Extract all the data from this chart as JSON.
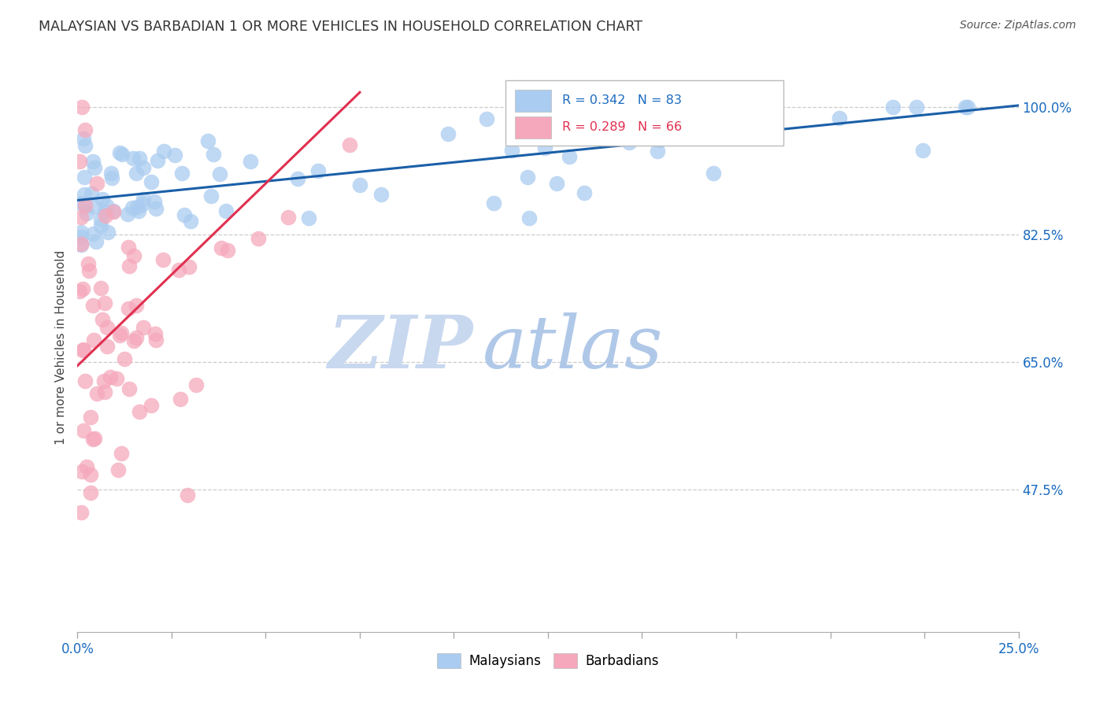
{
  "title": "MALAYSIAN VS BARBADIAN 1 OR MORE VEHICLES IN HOUSEHOLD CORRELATION CHART",
  "source": "Source: ZipAtlas.com",
  "ylabel": "1 or more Vehicles in Household",
  "ytick_labels": [
    "100.0%",
    "82.5%",
    "65.0%",
    "47.5%"
  ],
  "ytick_values": [
    1.0,
    0.825,
    0.65,
    0.475
  ],
  "legend_malaysians": "Malaysians",
  "legend_barbadians": "Barbadians",
  "R_malaysian": 0.342,
  "N_malaysian": 83,
  "R_barbadian": 0.289,
  "N_barbadian": 66,
  "malaysian_color": "#aaccf0",
  "barbadian_color": "#f5a8bb",
  "trendline_malaysian_color": "#1a5fa8",
  "trendline_barbadian_color": "#e03050",
  "watermark_zip_color": "#c8d8ef",
  "watermark_atlas_color": "#b0c8e8",
  "background_color": "#ffffff",
  "xmin": 0.0,
  "xmax": 0.25,
  "ymin": 0.28,
  "ymax": 1.06,
  "mal_trend_x0": 0.0,
  "mal_trend_y0": 0.872,
  "mal_trend_x1": 0.25,
  "mal_trend_y1": 1.002,
  "bar_trend_x0": 0.0,
  "bar_trend_y0": 0.645,
  "bar_trend_x1": 0.075,
  "bar_trend_y1": 1.02
}
